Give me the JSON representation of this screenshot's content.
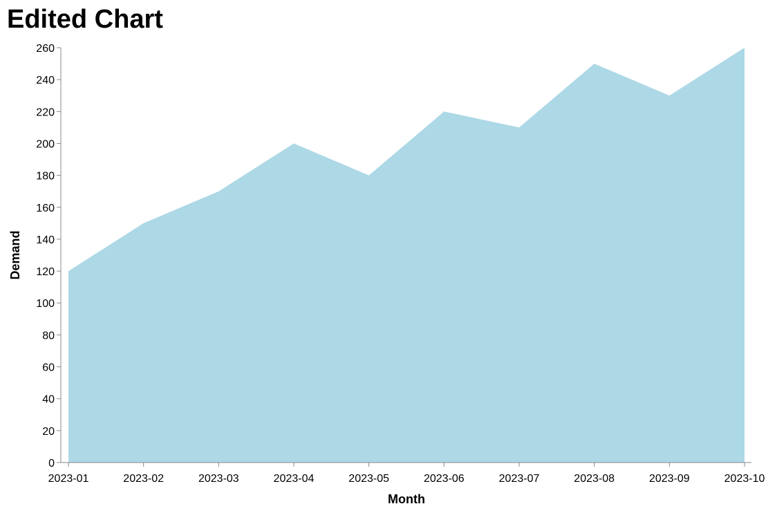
{
  "chart_data": {
    "type": "area",
    "title": "Edited Chart",
    "xlabel": "Month",
    "ylabel": "Demand",
    "categories": [
      "2023-01",
      "2023-02",
      "2023-03",
      "2023-04",
      "2023-05",
      "2023-06",
      "2023-07",
      "2023-08",
      "2023-09",
      "2023-10"
    ],
    "values": [
      120,
      150,
      170,
      200,
      180,
      220,
      210,
      250,
      230,
      260
    ],
    "ylim": [
      0,
      260
    ],
    "yticks": [
      0,
      20,
      40,
      60,
      80,
      100,
      120,
      140,
      160,
      180,
      200,
      220,
      240,
      260
    ],
    "grid": false,
    "fill_color": "#add8e6",
    "axis_color": "#888888"
  }
}
